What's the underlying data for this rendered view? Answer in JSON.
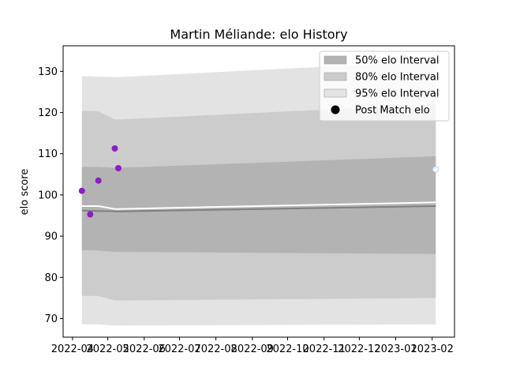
{
  "chart_data": {
    "type": "area",
    "title": "Martin Méliande: elo History",
    "xlabel": "",
    "ylabel": "elo score",
    "xlim": [
      "2022-03-24",
      "2023-02-20"
    ],
    "ylim": [
      65.5,
      136.2
    ],
    "x_ticks": [
      "2022-04",
      "2022-05",
      "2022-06",
      "2022-07",
      "2022-08",
      "2022-09",
      "2022-10",
      "2022-11",
      "2022-12",
      "2023-01",
      "2023-02"
    ],
    "x_tick_dates": [
      "2022-04-01",
      "2022-05-01",
      "2022-06-01",
      "2022-07-01",
      "2022-08-01",
      "2022-09-01",
      "2022-10-01",
      "2022-11-01",
      "2022-12-01",
      "2023-01-01",
      "2023-02-01"
    ],
    "y_ticks": [
      70,
      80,
      90,
      100,
      110,
      120,
      130
    ],
    "grid": false,
    "legend_position": "top-right",
    "legend": [
      {
        "label": "50% elo Interval",
        "kind": "patch",
        "color": "#b3b3b3"
      },
      {
        "label": "80% elo Interval",
        "kind": "patch",
        "color": "#cccccc"
      },
      {
        "label": "95% elo Interval",
        "kind": "patch",
        "color": "#e3e3e3"
      },
      {
        "label": "Post Match elo",
        "kind": "marker",
        "color": "#000000"
      }
    ],
    "bands": {
      "dates": [
        "2022-04-09",
        "2022-04-16",
        "2022-04-23",
        "2022-05-07",
        "2022-05-10",
        "2023-02-04"
      ],
      "b95": {
        "lower": [
          68.6,
          68.6,
          68.6,
          68.3,
          68.3,
          68.6
        ],
        "upper": [
          128.8,
          128.8,
          128.7,
          128.6,
          128.6,
          132.5
        ],
        "color": "#e3e3e3"
      },
      "b80": {
        "lower": [
          75.5,
          75.5,
          75.5,
          74.4,
          74.4,
          75.0
        ],
        "upper": [
          120.4,
          120.4,
          120.3,
          118.3,
          118.3,
          122.0
        ],
        "color": "#cccccc"
      },
      "b50": {
        "lower": [
          86.6,
          86.6,
          86.5,
          86.2,
          86.2,
          85.7
        ],
        "upper": [
          106.8,
          106.8,
          106.8,
          106.6,
          106.6,
          109.4
        ],
        "color": "#b3b3b3"
      }
    },
    "median": {
      "dates": [
        "2022-04-09",
        "2022-05-10",
        "2023-02-04"
      ],
      "values": [
        96.2,
        96.0,
        97.3
      ],
      "color": "#808080"
    },
    "mean": {
      "dates": [
        "2022-04-09",
        "2022-04-16",
        "2022-04-23",
        "2022-05-07",
        "2022-05-10",
        "2023-02-04"
      ],
      "values": [
        97.3,
        97.3,
        97.3,
        96.6,
        96.6,
        98.2
      ],
      "color": "#ffffff"
    },
    "points": [
      {
        "date": "2022-04-09",
        "value": 101.0
      },
      {
        "date": "2022-04-16",
        "value": 95.3
      },
      {
        "date": "2022-04-23",
        "value": 103.5
      },
      {
        "date": "2022-05-07",
        "value": 111.3
      },
      {
        "date": "2022-05-10",
        "value": 106.5
      }
    ],
    "point_color": "#8a1fc4",
    "future_point": {
      "date": "2023-02-04",
      "value": 106.2,
      "color": "#f4f9ff",
      "edge": "#b3d4f2"
    }
  }
}
